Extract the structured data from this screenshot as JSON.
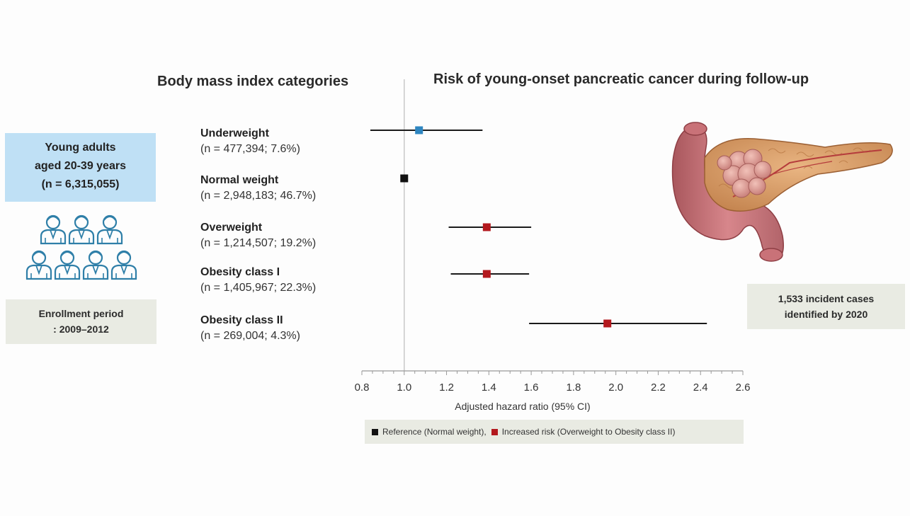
{
  "headings": {
    "bmi": "Body mass index categories",
    "risk": "Risk of young-onset pancreatic cancer during follow-up"
  },
  "cohort": {
    "line1": "Young adults",
    "line2": "aged 20-39 years",
    "line3": "(n = 6,315,055)"
  },
  "enrollment": {
    "line1": "Enrollment period",
    "line2": ": 2009–2012"
  },
  "cases": {
    "line1": "1,533 incident cases",
    "line2": "identified by 2020"
  },
  "categories": [
    {
      "name": "Underweight",
      "count": "(n = 477,394; 7.6%)"
    },
    {
      "name": "Normal weight",
      "count": "(n = 2,948,183; 46.7%)"
    },
    {
      "name": "Overweight",
      "count": "(n = 1,214,507; 19.2%)"
    },
    {
      "name": "Obesity class I",
      "count": "(n = 1,405,967; 22.3%)"
    },
    {
      "name": "Obesity class II",
      "count": "(n = 269,004; 4.3%)"
    }
  ],
  "legend": {
    "reference": "Reference (Normal weight),",
    "increased": "Increased risk (Overweight to Obesity class II)"
  },
  "colors": {
    "reference": "#111111",
    "increased": "#b3191e",
    "underweight": "#2e86c1"
  },
  "chart_data": {
    "type": "scatter",
    "subtype": "forest-plot",
    "xlabel": "Adjusted hazard ratio (95% CI)",
    "xlim": [
      0.8,
      2.6
    ],
    "xticks": [
      "0.8",
      "1.0",
      "1.2",
      "1.4",
      "1.6",
      "1.8",
      "2.0",
      "2.2",
      "2.4",
      "2.6"
    ],
    "reference_line": 1.0,
    "categories": [
      "Underweight",
      "Normal weight",
      "Overweight",
      "Obesity class I",
      "Obesity class II"
    ],
    "estimates": [
      1.07,
      1.0,
      1.39,
      1.39,
      1.96
    ],
    "ci_lower": [
      0.84,
      null,
      1.21,
      1.22,
      1.59
    ],
    "ci_upper": [
      1.37,
      null,
      1.6,
      1.59,
      2.43
    ],
    "marker_colors": [
      "#2e86c1",
      "#111111",
      "#b3191e",
      "#b3191e",
      "#b3191e"
    ]
  }
}
